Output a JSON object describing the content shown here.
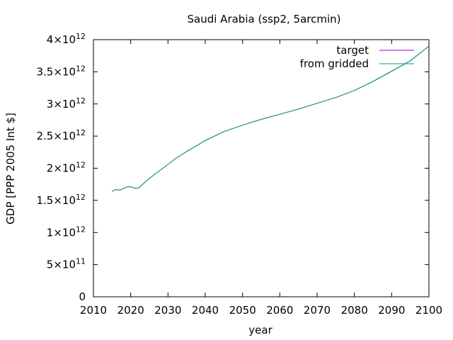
{
  "chart_data": {
    "type": "line",
    "title": "Saudi Arabia (ssp2, 5arcmin)",
    "xlabel": "year",
    "ylabel": "GDP [PPP 2005 Int $]",
    "xlim": [
      2010,
      2100
    ],
    "ylim": [
      0,
      4000000000000.0
    ],
    "x_ticks": [
      {
        "value": 2010,
        "label": "2010"
      },
      {
        "value": 2020,
        "label": "2020"
      },
      {
        "value": 2030,
        "label": "2030"
      },
      {
        "value": 2040,
        "label": "2040"
      },
      {
        "value": 2050,
        "label": "2050"
      },
      {
        "value": 2060,
        "label": "2060"
      },
      {
        "value": 2070,
        "label": "2070"
      },
      {
        "value": 2080,
        "label": "2080"
      },
      {
        "value": 2090,
        "label": "2090"
      },
      {
        "value": 2100,
        "label": "2100"
      }
    ],
    "y_ticks": [
      {
        "value": 0,
        "mantissa": "0",
        "exponent": ""
      },
      {
        "value": 500000000000.0,
        "mantissa": "5×10",
        "exponent": "11"
      },
      {
        "value": 1000000000000.0,
        "mantissa": "1×10",
        "exponent": "12"
      },
      {
        "value": 1500000000000.0,
        "mantissa": "1.5×10",
        "exponent": "12"
      },
      {
        "value": 2000000000000.0,
        "mantissa": "2×10",
        "exponent": "12"
      },
      {
        "value": 2500000000000.0,
        "mantissa": "2.5×10",
        "exponent": "12"
      },
      {
        "value": 3000000000000.0,
        "mantissa": "3×10",
        "exponent": "12"
      },
      {
        "value": 3500000000000.0,
        "mantissa": "3.5×10",
        "exponent": "12"
      },
      {
        "value": 4000000000000.0,
        "mantissa": "4×10",
        "exponent": "12"
      }
    ],
    "grid": false,
    "legend_position": "top-right",
    "x": [
      2015,
      2016,
      2017,
      2018,
      2019,
      2020,
      2021,
      2022,
      2023,
      2025,
      2027,
      2030,
      2032,
      2035,
      2040,
      2045,
      2050,
      2055,
      2060,
      2065,
      2070,
      2075,
      2080,
      2085,
      2090,
      2095,
      2100
    ],
    "series": [
      {
        "name": "target",
        "color": "#9400d3",
        "values": [
          1640000000000.0,
          1670000000000.0,
          1660000000000.0,
          1680000000000.0,
          1710000000000.0,
          1710000000000.0,
          1690000000000.0,
          1690000000000.0,
          1740000000000.0,
          1840000000000.0,
          1930000000000.0,
          2060000000000.0,
          2150000000000.0,
          2260000000000.0,
          2430000000000.0,
          2570000000000.0,
          2670000000000.0,
          2760000000000.0,
          2840000000000.0,
          2920000000000.0,
          3010000000000.0,
          3100000000000.0,
          3210000000000.0,
          3350000000000.0,
          3510000000000.0,
          3670000000000.0,
          3900000000000.0
        ]
      },
      {
        "name": "from gridded",
        "color": "#009e73",
        "values": [
          1640000000000.0,
          1670000000000.0,
          1660000000000.0,
          1680000000000.0,
          1710000000000.0,
          1710000000000.0,
          1690000000000.0,
          1690000000000.0,
          1740000000000.0,
          1840000000000.0,
          1930000000000.0,
          2060000000000.0,
          2150000000000.0,
          2260000000000.0,
          2430000000000.0,
          2570000000000.0,
          2670000000000.0,
          2760000000000.0,
          2840000000000.0,
          2920000000000.0,
          3010000000000.0,
          3100000000000.0,
          3210000000000.0,
          3350000000000.0,
          3510000000000.0,
          3670000000000.0,
          3900000000000.0
        ]
      }
    ]
  }
}
